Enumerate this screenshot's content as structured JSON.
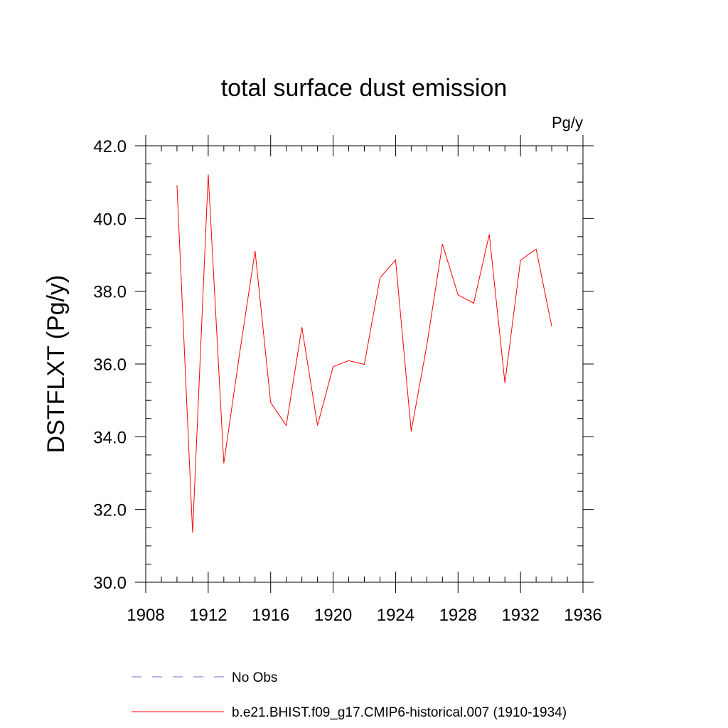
{
  "chart_data": {
    "type": "line",
    "title": "total surface dust emission",
    "units_label": "Pg/y",
    "ylabel": "DSTFLXT  (Pg/y)",
    "xlabel": "",
    "xlim": [
      1908,
      1936
    ],
    "ylim": [
      30.0,
      42.0
    ],
    "x_ticks": [
      1908,
      1912,
      1916,
      1920,
      1924,
      1928,
      1932,
      1936
    ],
    "x_tick_labels": [
      "1908",
      "1912",
      "1916",
      "1920",
      "1924",
      "1928",
      "1932",
      "1936"
    ],
    "y_ticks": [
      30,
      32,
      34,
      36,
      38,
      40,
      42
    ],
    "y_tick_labels": [
      "30.0",
      "32.0",
      "34.0",
      "36.0",
      "38.0",
      "40.0",
      "42.0"
    ],
    "grid": false,
    "legend_position": "bottom",
    "series": [
      {
        "name": "b.e21.BHIST.f09_g17.CMIP6-historical.007 (1910-1934)",
        "color": "#ff0000",
        "style": "solid",
        "x": [
          1910,
          1911,
          1912,
          1913,
          1914,
          1915,
          1916,
          1917,
          1918,
          1919,
          1920,
          1921,
          1922,
          1923,
          1924,
          1925,
          1926,
          1927,
          1928,
          1929,
          1930,
          1931,
          1932,
          1933,
          1934
        ],
        "y": [
          40.92,
          31.36,
          41.21,
          33.27,
          36.26,
          39.11,
          34.94,
          34.31,
          37.01,
          34.31,
          35.93,
          36.09,
          35.99,
          38.37,
          38.86,
          34.15,
          36.52,
          39.3,
          37.9,
          37.67,
          39.56,
          35.48,
          38.85,
          39.16,
          37.03
        ]
      },
      {
        "name": "No Obs",
        "color": "#7b68c6",
        "style": "dashed",
        "x": [],
        "y": []
      }
    ]
  }
}
